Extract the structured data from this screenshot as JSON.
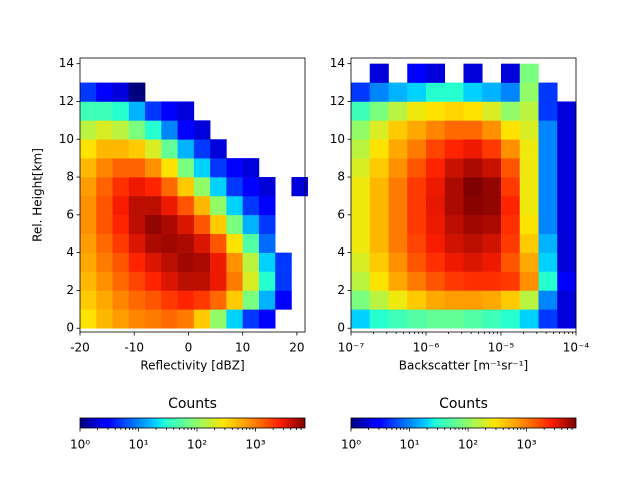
{
  "chart_data": [
    {
      "type": "heatmap",
      "colormap": "jet",
      "xscale": "linear",
      "xlabel": "Reflectivity [dBZ]",
      "ylabel": "Rel. Height[km]",
      "xlim": [
        -20,
        21.5
      ],
      "xticks": [
        -20,
        -10,
        0,
        10,
        20
      ],
      "ylim": [
        -0.2,
        14.3
      ],
      "yticks": [
        0,
        2,
        4,
        6,
        8,
        10,
        12,
        14
      ],
      "x_bins": [
        -20,
        -17,
        -14,
        -11,
        -8,
        -5,
        -2,
        1,
        4,
        7,
        10,
        13,
        16,
        19,
        22
      ],
      "y_bins": [
        0,
        1,
        2,
        3,
        4,
        5,
        6,
        7,
        8,
        9,
        10,
        11,
        12,
        13,
        14
      ],
      "values": [
        [
          300,
          500,
          700,
          900,
          1000,
          1200,
          1000,
          400,
          100,
          20,
          5,
          3,
          null,
          null
        ],
        [
          400,
          600,
          900,
          1200,
          1500,
          2000,
          2500,
          2000,
          1200,
          400,
          80,
          15,
          3,
          null
        ],
        [
          500,
          800,
          1200,
          1800,
          2500,
          3500,
          4500,
          4500,
          3000,
          1000,
          200,
          30,
          5,
          null
        ],
        [
          600,
          1000,
          1500,
          2500,
          3500,
          4500,
          5500,
          5000,
          3000,
          800,
          150,
          20,
          5,
          null
        ],
        [
          700,
          1200,
          2000,
          3500,
          5000,
          5500,
          5000,
          3500,
          1500,
          300,
          50,
          8,
          null,
          null
        ],
        [
          800,
          1500,
          2500,
          4500,
          6000,
          5000,
          3500,
          1500,
          400,
          80,
          15,
          5,
          null,
          null
        ],
        [
          800,
          1500,
          2800,
          4500,
          4500,
          3000,
          1500,
          500,
          100,
          20,
          5,
          3,
          null,
          null
        ],
        [
          700,
          1300,
          2200,
          3000,
          2500,
          1200,
          400,
          100,
          20,
          5,
          3,
          2,
          null,
          2
        ],
        [
          500,
          900,
          1300,
          1300,
          800,
          300,
          80,
          20,
          5,
          3,
          2,
          null,
          null,
          null
        ],
        [
          300,
          500,
          500,
          400,
          200,
          60,
          15,
          5,
          2,
          null,
          null,
          null,
          null,
          null
        ],
        [
          150,
          200,
          150,
          80,
          30,
          10,
          3,
          2,
          null,
          null,
          null,
          null,
          null,
          null
        ],
        [
          40,
          40,
          30,
          15,
          5,
          3,
          2,
          null,
          null,
          null,
          null,
          null,
          null,
          null
        ],
        [
          5,
          3,
          2,
          1,
          null,
          null,
          null,
          null,
          null,
          null,
          null,
          null,
          null,
          null
        ],
        [
          null,
          null,
          null,
          null,
          null,
          null,
          null,
          null,
          null,
          null,
          null,
          null,
          null,
          null
        ]
      ],
      "colorbar": {
        "label": "Counts",
        "scale": "log",
        "lim": [
          1,
          7000
        ],
        "ticks": [
          {
            "value": 1,
            "label": "10⁰"
          },
          {
            "value": 10,
            "label": "10¹"
          },
          {
            "value": 100,
            "label": "10²"
          },
          {
            "value": 1000,
            "label": "10³"
          }
        ]
      }
    },
    {
      "type": "heatmap",
      "colormap": "jet",
      "xscale": "log",
      "xlabel": "Backscatter [m⁻¹sr⁻¹]",
      "xlim": [
        1e-07,
        0.0001
      ],
      "xticks": [
        {
          "value": 1e-07,
          "label": "10⁻⁷"
        },
        {
          "value": 1e-06,
          "label": "10⁻⁶"
        },
        {
          "value": 1e-05,
          "label": "10⁻⁵"
        },
        {
          "value": 0.0001,
          "label": "10⁻⁴"
        }
      ],
      "ylim": [
        -0.2,
        14.3
      ],
      "yticks": [
        0,
        2,
        4,
        6,
        8,
        10,
        12,
        14
      ],
      "x_bins": [
        1e-07,
        1.778e-07,
        3.162e-07,
        5.623e-07,
        1e-06,
        1.778e-06,
        3.162e-06,
        5.623e-06,
        1e-05,
        1.778e-05,
        3.162e-05,
        5.623e-05,
        0.0001
      ],
      "y_bins": [
        0,
        1,
        2,
        3,
        4,
        5,
        6,
        7,
        8,
        9,
        10,
        11,
        12,
        13,
        14
      ],
      "values": [
        [
          20,
          30,
          40,
          50,
          60,
          60,
          50,
          40,
          30,
          20,
          5,
          2
        ],
        [
          80,
          150,
          250,
          400,
          600,
          700,
          700,
          600,
          400,
          150,
          10,
          2
        ],
        [
          150,
          300,
          600,
          1000,
          1500,
          2000,
          2200,
          2200,
          2000,
          800,
          30,
          3
        ],
        [
          200,
          400,
          800,
          1500,
          2200,
          3000,
          3500,
          3000,
          1500,
          600,
          20,
          2
        ],
        [
          250,
          500,
          1000,
          1800,
          2800,
          3800,
          4500,
          3800,
          2000,
          400,
          15,
          2
        ],
        [
          250,
          500,
          1000,
          2000,
          3000,
          4500,
          5500,
          5000,
          2200,
          300,
          10,
          2
        ],
        [
          250,
          500,
          1000,
          2000,
          3200,
          5000,
          6500,
          6000,
          2500,
          250,
          10,
          2
        ],
        [
          250,
          500,
          1000,
          2000,
          3000,
          5000,
          7000,
          6000,
          2000,
          250,
          10,
          2
        ],
        [
          200,
          400,
          800,
          1500,
          2500,
          4000,
          5000,
          4000,
          1500,
          250,
          10,
          2
        ],
        [
          150,
          300,
          600,
          1000,
          1800,
          2500,
          3000,
          2000,
          800,
          250,
          10,
          2
        ],
        [
          100,
          200,
          400,
          600,
          900,
          1200,
          1200,
          800,
          300,
          200,
          10,
          2
        ],
        [
          40,
          80,
          150,
          250,
          300,
          350,
          300,
          200,
          100,
          150,
          5,
          2
        ],
        [
          5,
          10,
          15,
          20,
          30,
          30,
          20,
          15,
          10,
          100,
          5,
          null
        ],
        [
          null,
          2,
          null,
          3,
          2,
          null,
          2,
          null,
          2,
          80,
          null,
          null
        ]
      ],
      "colorbar": {
        "label": "Counts",
        "scale": "log",
        "lim": [
          1,
          7000
        ],
        "ticks": [
          {
            "value": 1,
            "label": "10⁰"
          },
          {
            "value": 10,
            "label": "10¹"
          },
          {
            "value": 100,
            "label": "10²"
          },
          {
            "value": 1000,
            "label": "10³"
          }
        ]
      }
    }
  ]
}
